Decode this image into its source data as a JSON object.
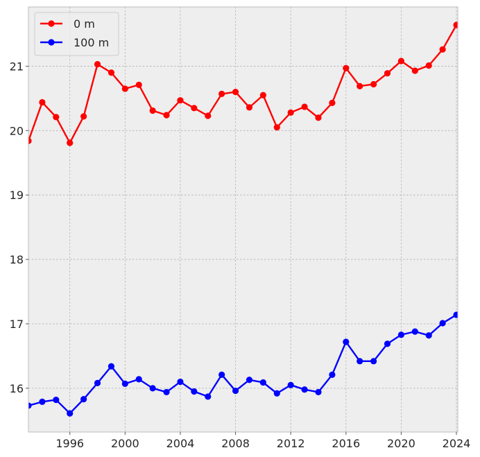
{
  "chart_data": {
    "type": "line",
    "title": "",
    "xlabel": "",
    "ylabel": "",
    "xlim": [
      1993,
      2024.1
    ],
    "ylim": [
      15.32,
      21.92
    ],
    "grid": true,
    "legend_position": "top-left",
    "x_ticks": [
      1996,
      2000,
      2004,
      2008,
      2012,
      2016,
      2020,
      2024
    ],
    "y_ticks": [
      16,
      17,
      18,
      19,
      20,
      21
    ],
    "x": [
      1993,
      1994,
      1995,
      1996,
      1997,
      1998,
      1999,
      2000,
      2001,
      2002,
      2003,
      2004,
      2005,
      2006,
      2007,
      2008,
      2009,
      2010,
      2011,
      2012,
      2013,
      2014,
      2015,
      2016,
      2017,
      2018,
      2019,
      2020,
      2021,
      2022,
      2023,
      2024
    ],
    "series": [
      {
        "name": "0 m",
        "color": "#ff0000",
        "values": [
          19.84,
          20.44,
          20.21,
          19.81,
          20.22,
          21.03,
          20.9,
          20.65,
          20.71,
          20.31,
          20.24,
          20.47,
          20.35,
          20.23,
          20.57,
          20.6,
          20.36,
          20.55,
          20.05,
          20.28,
          20.37,
          20.2,
          20.43,
          20.97,
          20.69,
          20.72,
          20.89,
          21.08,
          20.93,
          21.01,
          21.26,
          21.64
        ]
      },
      {
        "name": "100 m",
        "color": "#0000ff",
        "values": [
          15.73,
          15.79,
          15.82,
          15.61,
          15.83,
          16.08,
          16.34,
          16.07,
          16.14,
          16.0,
          15.94,
          16.1,
          15.95,
          15.87,
          16.21,
          15.96,
          16.13,
          16.09,
          15.92,
          16.05,
          15.98,
          15.94,
          16.21,
          16.72,
          16.42,
          16.42,
          16.69,
          16.83,
          16.88,
          16.82,
          17.01,
          17.14
        ]
      }
    ]
  },
  "style": {
    "plot_background": "#eeeeee",
    "grid_color": "#b0b0b0",
    "axis_color": "#bcbcbc"
  }
}
